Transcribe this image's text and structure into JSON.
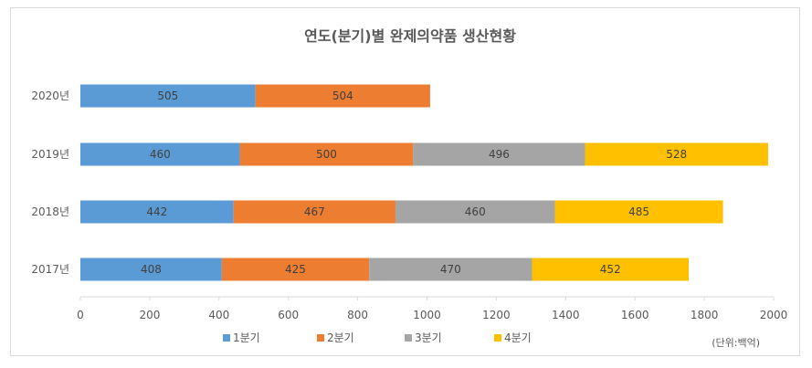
{
  "chart_data": {
    "type": "bar",
    "orientation": "horizontal",
    "stacked": true,
    "title": "연도(분기)별 완제의약품 생산현황",
    "categories": [
      "2020년",
      "2019년",
      "2018년",
      "2017년"
    ],
    "series": [
      {
        "name": "1분기",
        "color": "#5b9bd5",
        "values": [
          505,
          460,
          442,
          408
        ]
      },
      {
        "name": "2분기",
        "color": "#ed7d31",
        "values": [
          504,
          500,
          467,
          425
        ]
      },
      {
        "name": "3분기",
        "color": "#a5a5a5",
        "values": [
          null,
          496,
          460,
          470
        ]
      },
      {
        "name": "4분기",
        "color": "#ffc000",
        "values": [
          null,
          528,
          485,
          452
        ]
      }
    ],
    "xlim": [
      0,
      2000
    ],
    "xticks": [
      "0",
      "200",
      "400",
      "600",
      "800",
      "1000",
      "1200",
      "1400",
      "1600",
      "1800",
      "2000"
    ],
    "grid": false,
    "legend": "bottom",
    "unit_note": "(단위:백억)"
  }
}
